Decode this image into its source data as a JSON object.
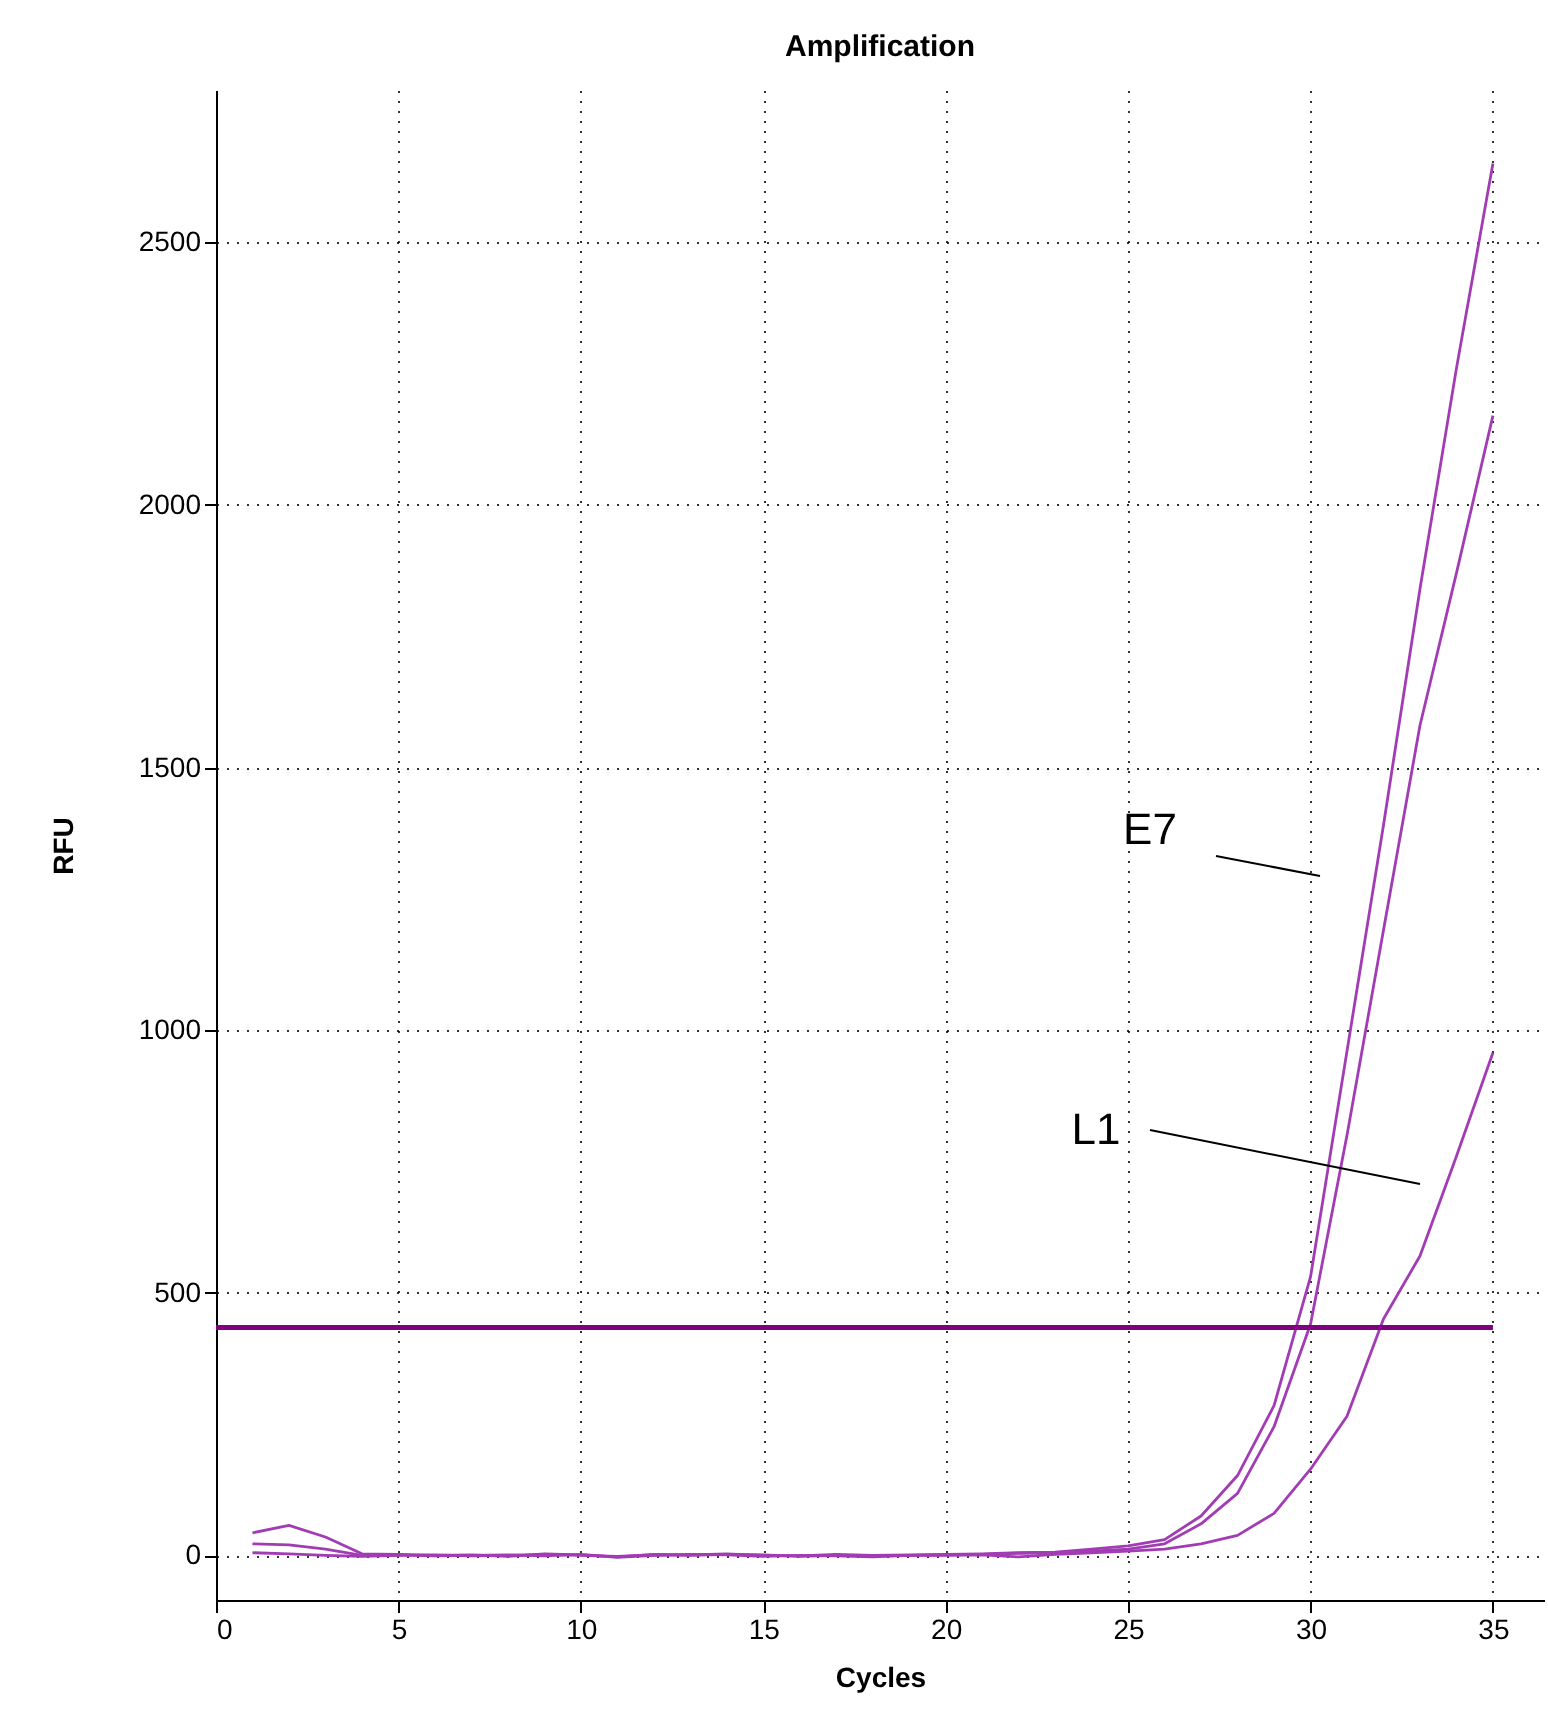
{
  "chart_data": {
    "type": "line",
    "title": "Amplification",
    "xlabel": "Cycles",
    "ylabel": "RFU",
    "x": [
      1,
      2,
      3,
      4,
      5,
      6,
      7,
      8,
      9,
      10,
      11,
      12,
      13,
      14,
      15,
      16,
      17,
      18,
      19,
      20,
      21,
      22,
      23,
      24,
      25,
      26,
      27,
      28,
      29,
      30,
      31,
      32,
      33,
      34,
      35
    ],
    "series": [
      {
        "color": "#a23cb4",
        "values": [
          43,
          57,
          35,
          3,
          2,
          0,
          1,
          -2,
          3,
          1,
          -3,
          2,
          1,
          3,
          0,
          -1,
          2,
          0,
          1,
          2,
          3,
          5,
          6,
          12,
          18,
          30,
          75,
          152,
          285,
          530,
          960,
          1390,
          1840,
          2260,
          2650
        ]
      },
      {
        "color": "#a23cb4",
        "values": [
          22,
          20,
          12,
          0,
          1,
          -1,
          0,
          1,
          -1,
          2,
          -4,
          0,
          2,
          1,
          -2,
          0,
          -1,
          -3,
          0,
          1,
          2,
          4,
          5,
          8,
          12,
          22,
          60,
          118,
          245,
          440,
          800,
          1190,
          1580,
          1870,
          2170
        ]
      },
      {
        "color": "#a23cb4",
        "values": [
          5,
          3,
          0,
          -2,
          0,
          1,
          -1,
          0,
          2,
          0,
          -2,
          1,
          0,
          2,
          1,
          -2,
          0,
          -1,
          0,
          0,
          1,
          -3,
          2,
          5,
          8,
          12,
          22,
          38,
          80,
          164,
          265,
          450,
          570,
          760,
          957
        ]
      }
    ],
    "ref_lines": [
      {
        "axis": "y",
        "value": 434,
        "color": "#800080"
      }
    ],
    "annotations": [
      "E7",
      "L1"
    ],
    "xlim": [
      0,
      36.4
    ],
    "ylim": [
      -85,
      2790
    ],
    "xticks": [
      0,
      5,
      10,
      15,
      20,
      25,
      30,
      35
    ],
    "yticks": [
      0,
      500,
      1000,
      1500,
      2000,
      2500
    ],
    "grid": true,
    "marker": "none",
    "line_style": "solid"
  }
}
